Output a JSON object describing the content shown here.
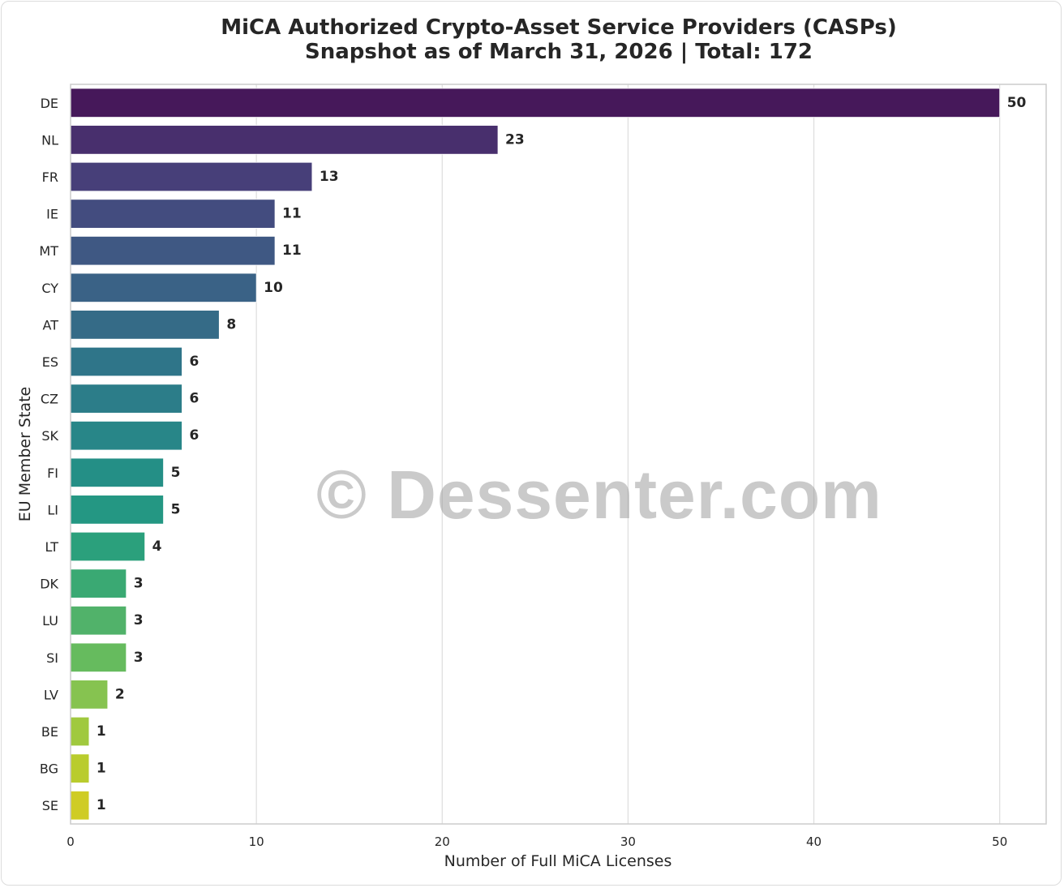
{
  "chart_data": {
    "type": "bar",
    "orientation": "horizontal",
    "title": "MiCA Authorized Crypto-Asset Service Providers (CASPs)",
    "subtitle": "Snapshot as of March 31, 2026 | Total: 172",
    "xlabel": "Number of Full MiCA Licenses",
    "ylabel": "EU Member State",
    "xlim": [
      0,
      52.5
    ],
    "xticks": [
      0,
      10,
      20,
      30,
      40,
      50
    ],
    "grid": "vertical",
    "categories": [
      "DE",
      "NL",
      "FR",
      "IE",
      "MT",
      "CY",
      "AT",
      "ES",
      "CZ",
      "SK",
      "FI",
      "LI",
      "LT",
      "DK",
      "LU",
      "SI",
      "LV",
      "BE",
      "BG",
      "SE"
    ],
    "values": [
      50,
      23,
      13,
      11,
      11,
      10,
      8,
      6,
      6,
      6,
      5,
      5,
      4,
      3,
      3,
      3,
      2,
      1,
      1,
      1
    ],
    "colors": [
      "#46185a",
      "#482f6d",
      "#473f79",
      "#434c7f",
      "#3f5883",
      "#3a6286",
      "#356b87",
      "#2f7589",
      "#2c7d89",
      "#288688",
      "#248f86",
      "#249783",
      "#2ba07c",
      "#3aa973",
      "#51b26a",
      "#66bb5e",
      "#86c350",
      "#a0c93e",
      "#b9cc2d",
      "#cfcc25"
    ]
  },
  "watermark": "© Dessenter.com"
}
